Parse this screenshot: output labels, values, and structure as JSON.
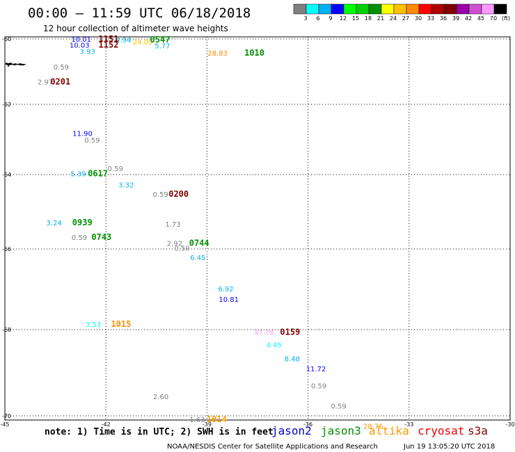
{
  "header": {
    "title": "00:00 – 11:59 UTC 06/18/2018",
    "subtitle": "12 hour collection of altimeter wave heights"
  },
  "colorbar": {
    "colors": [
      "#7f7f7f",
      "#00ffff",
      "#00b0f0",
      "#0000ff",
      "#00ff00",
      "#00d000",
      "#009000",
      "#ffff00",
      "#ffc000",
      "#ff8c00",
      "#ff0000",
      "#b00000",
      "#800000",
      "#9900aa",
      "#d050d0",
      "#ff99ff",
      "#000000"
    ],
    "labels": [
      "3",
      "6",
      "9",
      "12",
      "15",
      "18",
      "21",
      "24",
      "27",
      "30",
      "33",
      "36",
      "39",
      "42",
      "45",
      "70",
      "(ft)"
    ]
  },
  "footer": {
    "note": "note: 1) Time is in UTC; 2) SWH is in feet",
    "credit": "NOAA/NESDIS Center for Satellite Applications and Research",
    "generated": "Jun 19 13:05:20 UTC 2018"
  },
  "satellites": [
    {
      "name": "jason2",
      "color": "#0000cc"
    },
    {
      "name": "jason3",
      "color": "#009000"
    },
    {
      "name": "altika",
      "color": "#ff9900"
    },
    {
      "name": "cryosat",
      "color": "#ee0000"
    },
    {
      "name": "s3a",
      "color": "#800000"
    }
  ],
  "chart_data": {
    "type": "scatter",
    "title": "00:00 – 11:59 UTC 06/18/2018",
    "subtitle": "12 hour collection of altimeter wave heights",
    "xlim": [
      -45,
      -30
    ],
    "ylim": [
      -70.2,
      -59.9
    ],
    "xticks": [
      -45,
      -42,
      -39,
      -36,
      -33,
      -30
    ],
    "yticks": [
      -60,
      -62,
      -64,
      -66,
      -68,
      -70
    ],
    "xtick_labels": [
      "-45",
      "-42",
      "-39",
      "-36",
      "-33",
      "-30"
    ],
    "ytick_labels": [
      "-60",
      "-62",
      "-64",
      "-66",
      "-68",
      "-70"
    ],
    "grid": true,
    "wave_heights": [
      {
        "lon": -43.03,
        "lat": -60.0,
        "value": "10.01",
        "color": "#0000ff"
      },
      {
        "lon": -43.08,
        "lat": -60.18,
        "value": "10.03",
        "color": "#0000ff"
      },
      {
        "lon": -42.78,
        "lat": -60.37,
        "value": "3.93",
        "color": "#00b0f0"
      },
      {
        "lon": -41.71,
        "lat": -59.98,
        "value": "4.94",
        "color": "#00b0f0"
      },
      {
        "lon": -41.2,
        "lat": -60.08,
        "value": "24.09",
        "color": "#ffc000"
      },
      {
        "lon": -40.55,
        "lat": -60.2,
        "value": "5.77",
        "color": "#00b0f0"
      },
      {
        "lon": -38.98,
        "lat": -60.43,
        "value": "28.83",
        "color": "#ff8c00"
      },
      {
        "lon": -43.56,
        "lat": -60.85,
        "value": "0.59",
        "color": "#7f7f7f"
      },
      {
        "lon": -44.03,
        "lat": -61.31,
        "value": "2.97",
        "color": "#7f7f7f"
      },
      {
        "lon": -42.99,
        "lat": -62.82,
        "value": "11.90",
        "color": "#0000ff"
      },
      {
        "lon": -42.64,
        "lat": -63.01,
        "value": "0.59",
        "color": "#7f7f7f"
      },
      {
        "lon": -41.95,
        "lat": -63.82,
        "value": "0.59",
        "color": "#7f7f7f"
      },
      {
        "lon": -43.05,
        "lat": -63.97,
        "value": "5.39",
        "color": "#00b0f0"
      },
      {
        "lon": -41.63,
        "lat": -64.27,
        "value": "3.32",
        "color": "#00b0f0"
      },
      {
        "lon": -40.61,
        "lat": -64.52,
        "value": "0.59",
        "color": "#7f7f7f"
      },
      {
        "lon": -43.77,
        "lat": -65.29,
        "value": "3.24",
        "color": "#00b0f0"
      },
      {
        "lon": -43.02,
        "lat": -65.68,
        "value": "0.59",
        "color": "#7f7f7f"
      },
      {
        "lon": -40.24,
        "lat": -65.33,
        "value": "1.73",
        "color": "#7f7f7f"
      },
      {
        "lon": -40.19,
        "lat": -65.84,
        "value": "2.92",
        "color": "#7f7f7f"
      },
      {
        "lon": -39.97,
        "lat": -65.97,
        "value": "0.59",
        "color": "#7f7f7f"
      },
      {
        "lon": -39.5,
        "lat": -66.21,
        "value": "6.45",
        "color": "#00b0f0"
      },
      {
        "lon": -38.67,
        "lat": -66.98,
        "value": "6.92",
        "color": "#00b0f0"
      },
      {
        "lon": -38.65,
        "lat": -67.24,
        "value": "10.81",
        "color": "#0000ff"
      },
      {
        "lon": -42.6,
        "lat": -67.86,
        "value": "3.53",
        "color": "#00ffff"
      },
      {
        "lon": -37.6,
        "lat": -68.06,
        "value": "47.78",
        "color": "#ff99ff"
      },
      {
        "lon": -37.24,
        "lat": -68.35,
        "value": "4.45",
        "color": "#00ffff"
      },
      {
        "lon": -36.7,
        "lat": -68.67,
        "value": "8.48",
        "color": "#00b0f0"
      },
      {
        "lon": -36.06,
        "lat": -68.9,
        "value": "11.72",
        "color": "#0000ff"
      },
      {
        "lon": -35.91,
        "lat": -69.3,
        "value": "0.59",
        "color": "#7f7f7f"
      },
      {
        "lon": -40.6,
        "lat": -69.55,
        "value": "2.60",
        "color": "#7f7f7f"
      },
      {
        "lon": -35.32,
        "lat": -69.77,
        "value": "0.59",
        "color": "#7f7f7f"
      },
      {
        "lon": -39.52,
        "lat": -70.08,
        "value": "1.63",
        "color": "#7f7f7f"
      },
      {
        "lon": -34.36,
        "lat": -70.23,
        "value": "28.76",
        "color": "#ff8c00"
      }
    ],
    "pass_times": [
      {
        "lon": -42.22,
        "lat": -60.0,
        "time": "1151",
        "color": "#800000"
      },
      {
        "lon": -42.22,
        "lat": -60.18,
        "time": "1152",
        "color": "#800000"
      },
      {
        "lon": -40.69,
        "lat": -59.98,
        "time": "0547",
        "color": "#009000"
      },
      {
        "lon": -37.89,
        "lat": -60.43,
        "time": "1010",
        "color": "#009000"
      },
      {
        "lon": -43.65,
        "lat": -61.31,
        "time": "0201",
        "color": "#800000"
      },
      {
        "lon": -42.54,
        "lat": -63.97,
        "time": "0617",
        "color": "#009000"
      },
      {
        "lon": -40.14,
        "lat": -64.52,
        "time": "0200",
        "color": "#800000"
      },
      {
        "lon": -43.0,
        "lat": -65.29,
        "time": "0939",
        "color": "#009000"
      },
      {
        "lon": -42.43,
        "lat": -65.68,
        "time": "0743",
        "color": "#009000"
      },
      {
        "lon": -39.53,
        "lat": -65.84,
        "time": "0744",
        "color": "#009000"
      },
      {
        "lon": -41.85,
        "lat": -67.86,
        "time": "1015",
        "color": "#ff8c00"
      },
      {
        "lon": -36.83,
        "lat": -68.06,
        "time": "0159",
        "color": "#800000"
      },
      {
        "lon": -39.01,
        "lat": -70.08,
        "time": "1014",
        "color": "#ff9900"
      }
    ]
  }
}
